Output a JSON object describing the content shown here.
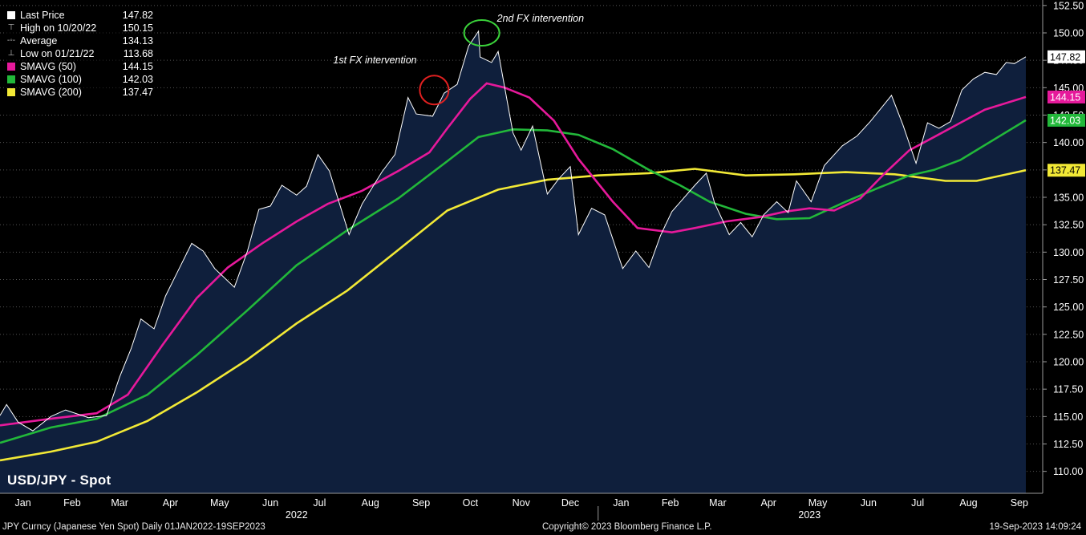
{
  "legend": {
    "last_price": {
      "label": "Last Price",
      "value": "147.82"
    },
    "high": {
      "label": "High on 10/20/22",
      "value": "150.15"
    },
    "average": {
      "label": "Average",
      "value": "134.13"
    },
    "low": {
      "label": "Low on 01/21/22",
      "value": "113.68"
    },
    "smavg50": {
      "label": "SMAVG (50)",
      "value": "144.15",
      "color": "#e6199b"
    },
    "smavg100": {
      "label": "SMAVG (100)",
      "value": "142.03",
      "color": "#22b83a"
    },
    "smavg200": {
      "label": "SMAVG (200)",
      "value": "137.47",
      "color": "#f2e936"
    }
  },
  "title": "USD/JPY - Spot",
  "footer": {
    "left": "JPY Curncy (Japanese Yen Spot)  Daily 01JAN2022-19SEP2023",
    "center": "Copyright© 2023 Bloomberg Finance L.P.",
    "right": "19-Sep-2023 14:09:24"
  },
  "chart_data": {
    "type": "area",
    "ylim": [
      108,
      153
    ],
    "y_ticks": [
      "110.00",
      "112.50",
      "115.00",
      "117.50",
      "120.00",
      "122.50",
      "125.00",
      "127.50",
      "130.00",
      "132.50",
      "135.00",
      "137.50",
      "140.00",
      "142.50",
      "145.00",
      "147.50",
      "150.00",
      "152.50"
    ],
    "x_months": [
      {
        "label": "Jan",
        "date": "2022-01-15"
      },
      {
        "label": "Feb",
        "date": "2022-02-14"
      },
      {
        "label": "Mar",
        "date": "2022-03-15"
      },
      {
        "label": "Apr",
        "date": "2022-04-15"
      },
      {
        "label": "May",
        "date": "2022-05-15"
      },
      {
        "label": "Jun",
        "date": "2022-06-15"
      },
      {
        "label": "Jul",
        "date": "2022-07-15"
      },
      {
        "label": "Aug",
        "date": "2022-08-15"
      },
      {
        "label": "Sep",
        "date": "2022-09-15"
      },
      {
        "label": "Oct",
        "date": "2022-10-15"
      },
      {
        "label": "Nov",
        "date": "2022-11-15"
      },
      {
        "label": "Dec",
        "date": "2022-12-15"
      },
      {
        "label": "Jan",
        "date": "2023-01-15"
      },
      {
        "label": "Feb",
        "date": "2023-02-14"
      },
      {
        "label": "Mar",
        "date": "2023-03-15"
      },
      {
        "label": "Apr",
        "date": "2023-04-15"
      },
      {
        "label": "May",
        "date": "2023-05-15"
      },
      {
        "label": "Jun",
        "date": "2023-06-15"
      },
      {
        "label": "Jul",
        "date": "2023-07-15"
      },
      {
        "label": "Aug",
        "date": "2023-08-15"
      },
      {
        "label": "Sep",
        "date": "2023-09-15"
      }
    ],
    "x_years": [
      {
        "label": "2022",
        "date": "2022-07-01"
      },
      {
        "label": "2023",
        "date": "2023-05-10"
      }
    ],
    "year_divider": "2023-01-01",
    "x_range": [
      "2022-01-01",
      "2023-09-19"
    ],
    "series": [
      {
        "name": "Last Price",
        "color": "#ffffff",
        "fill": "#0f1f3c",
        "x": [
          "2022-01-01",
          "2022-01-05",
          "2022-01-12",
          "2022-01-21",
          "2022-02-01",
          "2022-02-10",
          "2022-02-24",
          "2022-03-07",
          "2022-03-15",
          "2022-03-22",
          "2022-03-28",
          "2022-04-05",
          "2022-04-12",
          "2022-04-20",
          "2022-04-28",
          "2022-05-05",
          "2022-05-12",
          "2022-05-24",
          "2022-06-01",
          "2022-06-08",
          "2022-06-15",
          "2022-06-22",
          "2022-07-01",
          "2022-07-07",
          "2022-07-14",
          "2022-07-21",
          "2022-08-02",
          "2022-08-10",
          "2022-08-22",
          "2022-08-30",
          "2022-09-07",
          "2022-09-12",
          "2022-09-22",
          "2022-09-29",
          "2022-10-07",
          "2022-10-14",
          "2022-10-20",
          "2022-10-21",
          "2022-10-28",
          "2022-11-01",
          "2022-11-10",
          "2022-11-15",
          "2022-11-22",
          "2022-12-01",
          "2022-12-08",
          "2022-12-15",
          "2022-12-20",
          "2022-12-28",
          "2023-01-05",
          "2023-01-16",
          "2023-01-24",
          "2023-02-01",
          "2023-02-08",
          "2023-02-15",
          "2023-02-22",
          "2023-03-01",
          "2023-03-08",
          "2023-03-13",
          "2023-03-22",
          "2023-03-29",
          "2023-04-05",
          "2023-04-12",
          "2023-04-20",
          "2023-04-27",
          "2023-05-02",
          "2023-05-11",
          "2023-05-19",
          "2023-05-30",
          "2023-06-08",
          "2023-06-16",
          "2023-06-29",
          "2023-07-06",
          "2023-07-14",
          "2023-07-21",
          "2023-07-28",
          "2023-08-04",
          "2023-08-11",
          "2023-08-18",
          "2023-08-25",
          "2023-09-01",
          "2023-09-07",
          "2023-09-12",
          "2023-09-19"
        ],
        "values": [
          115.1,
          116.1,
          114.5,
          113.7,
          115.0,
          115.6,
          114.9,
          115.1,
          118.6,
          121.2,
          123.9,
          123.0,
          126.0,
          128.4,
          130.8,
          130.1,
          128.5,
          126.8,
          130.1,
          133.9,
          134.2,
          136.1,
          135.2,
          136.0,
          138.9,
          137.4,
          131.6,
          134.4,
          137.3,
          138.9,
          144.1,
          142.6,
          142.4,
          144.5,
          145.3,
          148.8,
          150.15,
          147.8,
          147.3,
          148.3,
          140.9,
          139.3,
          141.5,
          135.3,
          136.7,
          137.8,
          131.6,
          134.0,
          133.4,
          128.5,
          130.1,
          128.6,
          131.5,
          133.7,
          134.9,
          136.1,
          137.2,
          134.5,
          131.6,
          132.7,
          131.4,
          133.4,
          134.6,
          133.6,
          136.5,
          134.6,
          137.9,
          139.7,
          140.6,
          141.9,
          144.3,
          141.6,
          138.1,
          141.8,
          141.3,
          141.9,
          144.8,
          145.8,
          146.4,
          146.2,
          147.3,
          147.2,
          147.82
        ]
      },
      {
        "name": "SMAVG (50)",
        "color": "#e6199b",
        "x": [
          "2022-01-01",
          "2022-02-01",
          "2022-03-01",
          "2022-03-20",
          "2022-04-10",
          "2022-05-01",
          "2022-05-20",
          "2022-06-10",
          "2022-07-01",
          "2022-07-20",
          "2022-08-10",
          "2022-09-01",
          "2022-09-20",
          "2022-10-01",
          "2022-10-15",
          "2022-10-25",
          "2022-11-05",
          "2022-11-20",
          "2022-12-05",
          "2022-12-20",
          "2023-01-10",
          "2023-01-25",
          "2023-02-15",
          "2023-03-01",
          "2023-03-20",
          "2023-04-10",
          "2023-04-25",
          "2023-05-10",
          "2023-05-25",
          "2023-06-10",
          "2023-06-25",
          "2023-07-10",
          "2023-07-25",
          "2023-08-10",
          "2023-08-25",
          "2023-09-19"
        ],
        "values": [
          114.2,
          114.8,
          115.3,
          117.0,
          121.5,
          125.8,
          128.6,
          130.8,
          132.8,
          134.4,
          135.6,
          137.4,
          139.1,
          141.3,
          144.0,
          145.4,
          145.0,
          144.1,
          142.0,
          138.5,
          134.6,
          132.2,
          131.8,
          132.2,
          132.8,
          133.2,
          133.7,
          134.0,
          133.8,
          134.9,
          137.2,
          139.3,
          140.5,
          141.8,
          143.0,
          144.15
        ]
      },
      {
        "name": "SMAVG (100)",
        "color": "#22b83a",
        "x": [
          "2022-01-01",
          "2022-02-01",
          "2022-03-01",
          "2022-04-01",
          "2022-05-01",
          "2022-06-01",
          "2022-07-01",
          "2022-08-01",
          "2022-09-01",
          "2022-10-01",
          "2022-10-20",
          "2022-11-10",
          "2022-12-01",
          "2022-12-20",
          "2023-01-10",
          "2023-02-01",
          "2023-02-20",
          "2023-03-10",
          "2023-04-01",
          "2023-04-20",
          "2023-05-10",
          "2023-06-01",
          "2023-06-20",
          "2023-07-10",
          "2023-07-25",
          "2023-08-10",
          "2023-09-19"
        ],
        "values": [
          112.6,
          114.0,
          114.8,
          117.0,
          120.6,
          124.7,
          128.8,
          132.0,
          134.9,
          138.3,
          140.5,
          141.2,
          141.1,
          140.7,
          139.4,
          137.5,
          136.1,
          134.6,
          133.5,
          133.0,
          133.1,
          134.6,
          135.8,
          137.0,
          137.5,
          138.4,
          142.03
        ]
      },
      {
        "name": "SMAVG (200)",
        "color": "#f2e936",
        "x": [
          "2022-01-01",
          "2022-02-01",
          "2022-03-01",
          "2022-04-01",
          "2022-05-01",
          "2022-06-01",
          "2022-07-01",
          "2022-08-01",
          "2022-09-01",
          "2022-10-01",
          "2022-11-01",
          "2022-12-01",
          "2023-01-01",
          "2023-02-01",
          "2023-03-01",
          "2023-04-01",
          "2023-05-01",
          "2023-06-01",
          "2023-07-01",
          "2023-08-01",
          "2023-08-20",
          "2023-09-19"
        ],
        "values": [
          111.0,
          111.8,
          112.7,
          114.6,
          117.2,
          120.2,
          123.5,
          126.5,
          130.2,
          133.8,
          135.7,
          136.6,
          137.0,
          137.2,
          137.6,
          137.0,
          137.1,
          137.3,
          137.1,
          136.5,
          136.5,
          137.47
        ]
      }
    ],
    "annotations": [
      {
        "text": "1st FX intervention",
        "date": "2022-09-22",
        "value": 145.3,
        "color": "#e02020"
      },
      {
        "text": "2nd FX intervention",
        "date": "2022-10-21",
        "value": 150.15,
        "color": "#3ad13a"
      }
    ]
  }
}
